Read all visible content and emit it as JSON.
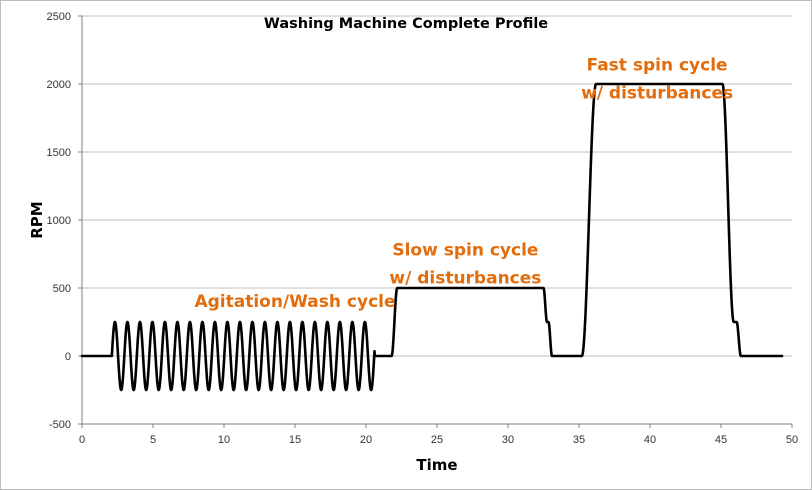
{
  "chart_data": {
    "type": "line",
    "title": "Washing Machine Complete Profile",
    "xlabel": "Time",
    "ylabel": "RPM",
    "xlim": [
      0,
      50
    ],
    "ylim": [
      -500,
      2500
    ],
    "xticks": [
      0,
      5,
      10,
      15,
      20,
      25,
      30,
      35,
      40,
      45,
      50
    ],
    "yticks": [
      -500,
      0,
      500,
      1000,
      1500,
      2000,
      2500
    ],
    "grid": "horizontal",
    "legend": "none",
    "colors": {
      "line": "#000000",
      "annotation": "#E46C0A",
      "grid": "#bfbfbf",
      "axis": "#808080"
    },
    "series": [
      {
        "name": "RPM",
        "phases": [
          {
            "kind": "flat",
            "t0": 0,
            "t1": 2.1,
            "rpm": 0
          },
          {
            "kind": "oscillation",
            "t0": 2.1,
            "t1": 20.6,
            "amplitude": 250,
            "period": 0.88
          },
          {
            "kind": "flat",
            "t0": 20.6,
            "t1": 21.8,
            "rpm": 0
          },
          {
            "kind": "ramp",
            "t0": 21.8,
            "t1": 22.2,
            "from": 0,
            "to": 500
          },
          {
            "kind": "flat",
            "t0": 22.2,
            "t1": 32.5,
            "rpm": 500
          },
          {
            "kind": "ramp",
            "t0": 32.5,
            "t1": 32.75,
            "from": 500,
            "to": 250
          },
          {
            "kind": "flat",
            "t0": 32.75,
            "t1": 32.85,
            "rpm": 250
          },
          {
            "kind": "ramp",
            "t0": 32.85,
            "t1": 33.1,
            "from": 250,
            "to": 0
          },
          {
            "kind": "flat",
            "t0": 33.1,
            "t1": 35.2,
            "rpm": 0
          },
          {
            "kind": "ramp",
            "t0": 35.2,
            "t1": 36.2,
            "from": 0,
            "to": 2000
          },
          {
            "kind": "flat",
            "t0": 36.2,
            "t1": 45.1,
            "rpm": 2000
          },
          {
            "kind": "ramp",
            "t0": 45.1,
            "t1": 45.9,
            "from": 2000,
            "to": 250
          },
          {
            "kind": "flat",
            "t0": 45.9,
            "t1": 46.1,
            "rpm": 250
          },
          {
            "kind": "ramp",
            "t0": 46.1,
            "t1": 46.4,
            "from": 250,
            "to": 0
          },
          {
            "kind": "flat",
            "t0": 46.4,
            "t1": 49.3,
            "rpm": 0
          }
        ]
      }
    ],
    "annotations": [
      {
        "lines": [
          "Agitation/Wash cycle"
        ],
        "x": 15,
        "y": 360
      },
      {
        "lines": [
          "Slow spin cycle",
          "w/ disturbances"
        ],
        "x": 27,
        "y": 740
      },
      {
        "lines": [
          "Fast spin cycle",
          "w/ disturbances"
        ],
        "x": 40.5,
        "y": 2100
      }
    ]
  }
}
